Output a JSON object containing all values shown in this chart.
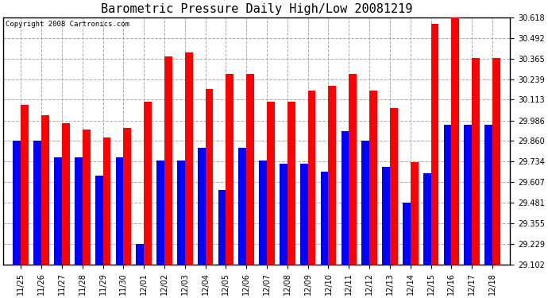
{
  "title": "Barometric Pressure Daily High/Low 20081219",
  "copyright": "Copyright 2008 Cartronics.com",
  "categories": [
    "11/25",
    "11/26",
    "11/27",
    "11/28",
    "11/29",
    "11/30",
    "12/01",
    "12/02",
    "12/03",
    "12/04",
    "12/05",
    "12/06",
    "12/07",
    "12/08",
    "12/09",
    "12/10",
    "12/11",
    "12/12",
    "12/13",
    "12/14",
    "12/15",
    "12/16",
    "12/17",
    "12/18"
  ],
  "highs": [
    30.08,
    30.02,
    29.97,
    29.93,
    29.88,
    29.94,
    30.1,
    30.38,
    30.4,
    30.18,
    30.27,
    30.27,
    30.1,
    30.1,
    30.17,
    30.2,
    30.27,
    30.17,
    30.06,
    29.73,
    30.58,
    30.62,
    30.37,
    30.37
  ],
  "lows": [
    29.86,
    29.86,
    29.76,
    29.76,
    29.65,
    29.76,
    29.23,
    29.74,
    29.74,
    29.82,
    29.56,
    29.82,
    29.74,
    29.72,
    29.72,
    29.67,
    29.92,
    29.86,
    29.7,
    29.48,
    29.66,
    29.96,
    29.96,
    29.96
  ],
  "high_color": "#ff0000",
  "low_color": "#0000ff",
  "bg_color": "#ffffff",
  "plot_bg_color": "#ffffff",
  "grid_color": "#aaaaaa",
  "ymin": 29.102,
  "ymax": 30.618,
  "yticks": [
    29.102,
    29.229,
    29.355,
    29.481,
    29.607,
    29.734,
    29.86,
    29.986,
    30.113,
    30.239,
    30.365,
    30.492,
    30.618
  ],
  "title_fontsize": 11,
  "copyright_fontsize": 6.5,
  "tick_fontsize": 7,
  "bar_width": 0.38
}
